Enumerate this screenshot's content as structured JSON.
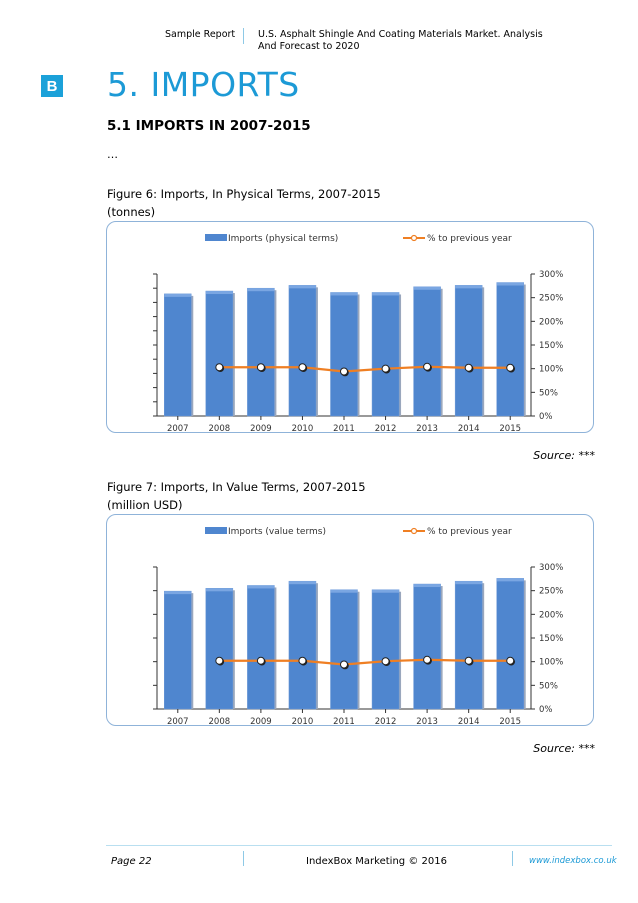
{
  "header": {
    "left": "Sample Report",
    "right": "U.S. Asphalt Shingle And Coating Materials Market. Analysis And Forecast to 2020"
  },
  "section": {
    "badge": "B",
    "title": "5. IMPORTS",
    "subtitle": "5.1 IMPORTS IN 2007-2015",
    "ellipsis": "…"
  },
  "figures": [
    {
      "caption": "Figure 6: Imports, In Physical Terms, 2007-2015",
      "unit": "(tonnes)",
      "source": "Source:  ***"
    },
    {
      "caption": "Figure 7: Imports, In Value Terms, 2007-2015",
      "unit": "(million USD)",
      "source": "Source:  ***"
    }
  ],
  "chart_data": [
    {
      "type": "bar",
      "categories": [
        "2007",
        "2008",
        "2009",
        "2010",
        "2011",
        "2012",
        "2013",
        "2014",
        "2015"
      ],
      "series": [
        {
          "name": "Imports (physical terms)",
          "type": "bar",
          "values": [
            86,
            88,
            90,
            92,
            87,
            87,
            91,
            92,
            94
          ],
          "color": "#4f86cf"
        },
        {
          "name": "% to previous year",
          "type": "line",
          "values": [
            null,
            103,
            103,
            103,
            94,
            100,
            104,
            102,
            102
          ],
          "color": "#ef7f23"
        }
      ],
      "y_left_ticks": 10,
      "y_right_ticks": [
        "0%",
        "50%",
        "100%",
        "150%",
        "200%",
        "250%",
        "300%"
      ],
      "y_right_range": [
        0,
        300
      ],
      "y_left_labels": false,
      "legend": "top"
    },
    {
      "type": "bar",
      "categories": [
        "2007",
        "2008",
        "2009",
        "2010",
        "2011",
        "2012",
        "2013",
        "2014",
        "2015"
      ],
      "series": [
        {
          "name": "Imports (value terms)",
          "type": "bar",
          "values": [
            83,
            85,
            87,
            90,
            84,
            84,
            88,
            90,
            92
          ],
          "color": "#4f86cf"
        },
        {
          "name": "% to previous year",
          "type": "line",
          "values": [
            null,
            102,
            102,
            102,
            94,
            101,
            104,
            102,
            102
          ],
          "color": "#ef7f23"
        }
      ],
      "y_left_ticks": 6,
      "y_right_ticks": [
        "0%",
        "50%",
        "100%",
        "150%",
        "200%",
        "250%",
        "300%"
      ],
      "y_right_range": [
        0,
        300
      ],
      "y_left_labels": false,
      "legend": "top"
    }
  ],
  "footer": {
    "page": "Page 22",
    "copyright": "IndexBox Marketing © 2016",
    "url": "www.indexbox.co.uk"
  }
}
